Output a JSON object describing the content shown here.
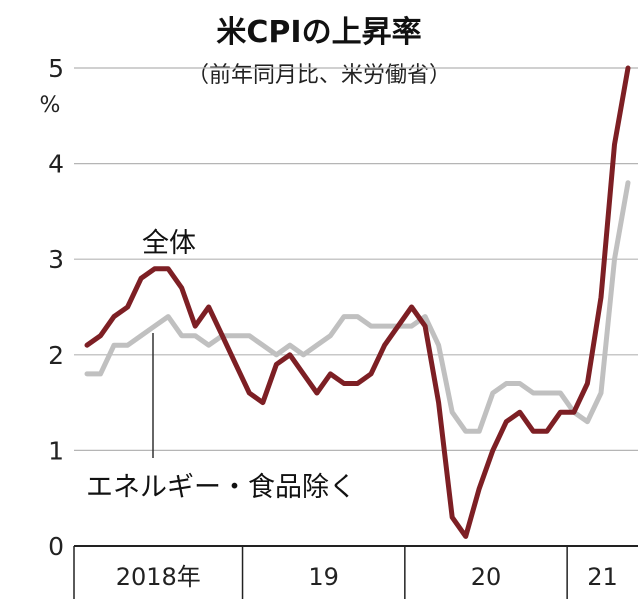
{
  "chart_data": {
    "type": "line",
    "title": "米CPIの上昇率",
    "subtitle": "（前年同月比、米労働省）",
    "y_unit": "%",
    "ylim": [
      0,
      5
    ],
    "y_ticks": [
      "0",
      "1",
      "2",
      "3",
      "4",
      "5"
    ],
    "grid": true,
    "x": [
      "2018-01",
      "2018-02",
      "2018-03",
      "2018-04",
      "2018-05",
      "2018-06",
      "2018-07",
      "2018-08",
      "2018-09",
      "2018-10",
      "2018-11",
      "2018-12",
      "2019-01",
      "2019-02",
      "2019-03",
      "2019-04",
      "2019-05",
      "2019-06",
      "2019-07",
      "2019-08",
      "2019-09",
      "2019-10",
      "2019-11",
      "2019-12",
      "2020-01",
      "2020-02",
      "2020-03",
      "2020-04",
      "2020-05",
      "2020-06",
      "2020-07",
      "2020-08",
      "2020-09",
      "2020-10",
      "2020-11",
      "2020-12",
      "2021-01",
      "2021-02",
      "2021-03",
      "2021-04",
      "2021-05"
    ],
    "x_groups": [
      {
        "label": "2018年",
        "start": 0,
        "end": 11
      },
      {
        "label": "19",
        "start": 12,
        "end": 23
      },
      {
        "label": "20",
        "start": 24,
        "end": 35
      },
      {
        "label": "21",
        "start": 36,
        "end": 40
      }
    ],
    "series": [
      {
        "name": "全体",
        "color": "#7d1f24",
        "values": [
          2.1,
          2.2,
          2.4,
          2.5,
          2.8,
          2.9,
          2.9,
          2.7,
          2.3,
          2.5,
          2.2,
          1.9,
          1.6,
          1.5,
          1.9,
          2.0,
          1.8,
          1.6,
          1.8,
          1.7,
          1.7,
          1.8,
          2.1,
          2.3,
          2.5,
          2.3,
          1.5,
          0.3,
          0.1,
          0.6,
          1.0,
          1.3,
          1.4,
          1.2,
          1.2,
          1.4,
          1.4,
          1.7,
          2.6,
          4.2,
          5.0
        ]
      },
      {
        "name": "エネルギー・食品除く",
        "color": "#c0c0c0",
        "values": [
          1.8,
          1.8,
          2.1,
          2.1,
          2.2,
          2.3,
          2.4,
          2.2,
          2.2,
          2.1,
          2.2,
          2.2,
          2.2,
          2.1,
          2.0,
          2.1,
          2.0,
          2.1,
          2.2,
          2.4,
          2.4,
          2.3,
          2.3,
          2.3,
          2.3,
          2.4,
          2.1,
          1.4,
          1.2,
          1.2,
          1.6,
          1.7,
          1.7,
          1.6,
          1.6,
          1.6,
          1.4,
          1.3,
          1.6,
          3.0,
          3.8
        ]
      }
    ]
  }
}
